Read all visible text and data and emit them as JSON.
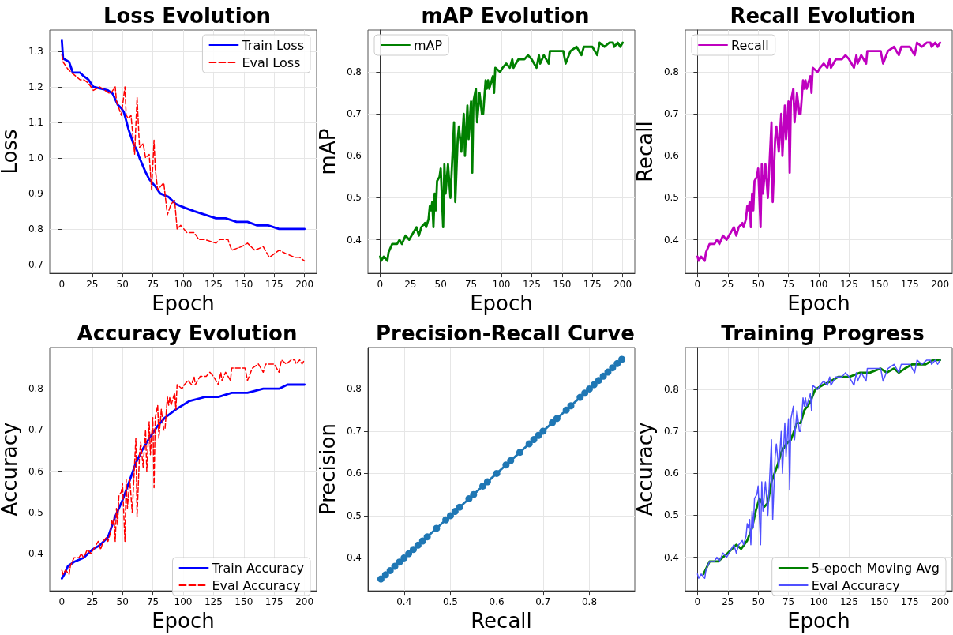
{
  "chart_data": [
    {
      "type": "line",
      "title": "Loss Evolution",
      "xlabel": "Epoch",
      "ylabel": "Loss",
      "xlim": [
        -10,
        210
      ],
      "xticks": [
        0,
        25,
        50,
        75,
        100,
        125,
        150,
        175,
        200
      ],
      "ylim": [
        0.675,
        1.36
      ],
      "yticks": [
        0.7,
        0.8,
        0.9,
        {
          "value": 1,
          "label": "1.0"
        },
        1.1,
        1.2,
        1.3
      ],
      "grid": true,
      "legend": "top right",
      "series": [
        {
          "name": "Train Loss",
          "color": "#0000ff",
          "line_style": "solid",
          "x": [
            0,
            1,
            6,
            9,
            15,
            18,
            22,
            26,
            38,
            42,
            46,
            49,
            51,
            55,
            59,
            62,
            64,
            69,
            72,
            77,
            81,
            88,
            94,
            101,
            109,
            118,
            127,
            135,
            144,
            153,
            161,
            170,
            179,
            187,
            192,
            200
          ],
          "values": [
            1.33,
            1.28,
            1.27,
            1.24,
            1.24,
            1.23,
            1.22,
            1.2,
            1.19,
            1.18,
            1.15,
            1.14,
            1.13,
            1.08,
            1.04,
            1.02,
            1,
            0.96,
            0.94,
            0.92,
            0.9,
            0.89,
            0.87,
            0.86,
            0.85,
            0.84,
            0.83,
            0.83,
            0.82,
            0.82,
            0.81,
            0.81,
            0.8,
            0.8,
            0.8,
            0.8
          ]
        },
        {
          "name": "Eval Loss",
          "color": "#ff0000",
          "line_style": "dashed",
          "x": [
            0,
            1,
            5,
            8,
            15,
            18,
            22,
            26,
            31,
            40,
            44,
            45,
            49,
            52,
            53,
            55,
            57,
            60,
            62,
            64,
            67,
            69,
            72,
            74,
            76,
            77,
            79,
            84,
            87,
            90,
            93,
            95,
            98,
            103,
            109,
            113,
            118,
            127,
            130,
            137,
            140,
            148,
            153,
            159,
            166,
            171,
            179,
            185,
            192,
            196,
            200
          ],
          "values": [
            1.29,
            1.27,
            1.25,
            1.24,
            1.22,
            1.22,
            1.21,
            1.19,
            1.2,
            1.18,
            1.2,
            1.16,
            1.12,
            1.2,
            1.12,
            1.11,
            1.12,
            1.01,
            1.17,
            1.03,
            1.04,
            1,
            1.01,
            0.91,
            1.05,
            0.97,
            0.91,
            0.93,
            0.84,
            0.87,
            0.88,
            0.8,
            0.81,
            0.79,
            0.79,
            0.77,
            0.77,
            0.76,
            0.77,
            0.77,
            0.74,
            0.75,
            0.76,
            0.74,
            0.75,
            0.72,
            0.74,
            0.73,
            0.72,
            0.72,
            0.71
          ]
        }
      ]
    },
    {
      "type": "line",
      "title": "mAP Evolution",
      "xlabel": "Epoch",
      "ylabel": "mAP",
      "xlim": [
        -10,
        210
      ],
      "xticks": [
        0,
        25,
        50,
        75,
        100,
        125,
        150,
        175,
        200
      ],
      "ylim": [
        0.32,
        0.9
      ],
      "yticks": [
        0.4,
        0.5,
        0.6,
        0.7,
        0.8
      ],
      "grid": true,
      "legend": "top left",
      "series": [
        {
          "name": "mAP",
          "color": "#008000",
          "line_style": "solid",
          "x": [
            0,
            1,
            3,
            6,
            7,
            10,
            14,
            16,
            18,
            21,
            24,
            26,
            30,
            32,
            34,
            37,
            38,
            40,
            41,
            42,
            43,
            44,
            45,
            46,
            47,
            49,
            50,
            52,
            53,
            54,
            56,
            58,
            61,
            62,
            64,
            65,
            67,
            69,
            70,
            72,
            73,
            75,
            76,
            77,
            79,
            80,
            82,
            84,
            85,
            87,
            88,
            89,
            90,
            93,
            94,
            95,
            99,
            101,
            104,
            107,
            109,
            110,
            114,
            119,
            122,
            125,
            129,
            131,
            132,
            135,
            139,
            140,
            147,
            151,
            153,
            157,
            162,
            166,
            168,
            175,
            179,
            181,
            185,
            189,
            192,
            193,
            196,
            198,
            200
          ],
          "values": [
            0.36,
            0.35,
            0.36,
            0.35,
            0.37,
            0.39,
            0.39,
            0.4,
            0.39,
            0.41,
            0.4,
            0.41,
            0.43,
            0.41,
            0.43,
            0.44,
            0.43,
            0.45,
            0.48,
            0.47,
            0.49,
            0.43,
            0.51,
            0.47,
            0.54,
            0.55,
            0.57,
            0.43,
            0.58,
            0.51,
            0.58,
            0.5,
            0.68,
            0.49,
            0.64,
            0.67,
            0.61,
            0.7,
            0.6,
            0.72,
            0.64,
            0.73,
            0.56,
            0.73,
            0.76,
            0.68,
            0.75,
            0.7,
            0.7,
            0.78,
            0.76,
            0.78,
            0.76,
            0.79,
            0.75,
            0.81,
            0.8,
            0.81,
            0.82,
            0.81,
            0.83,
            0.81,
            0.83,
            0.83,
            0.84,
            0.83,
            0.81,
            0.84,
            0.82,
            0.84,
            0.82,
            0.85,
            0.85,
            0.85,
            0.82,
            0.85,
            0.86,
            0.84,
            0.86,
            0.86,
            0.84,
            0.87,
            0.86,
            0.87,
            0.87,
            0.86,
            0.87,
            0.86,
            0.87
          ]
        }
      ]
    },
    {
      "type": "line",
      "title": "Recall Evolution",
      "xlabel": "Epoch",
      "ylabel": "Recall",
      "xlim": [
        -10,
        210
      ],
      "xticks": [
        0,
        25,
        50,
        75,
        100,
        125,
        150,
        175,
        200
      ],
      "ylim": [
        0.32,
        0.9
      ],
      "yticks": [
        0.4,
        0.5,
        0.6,
        0.7,
        0.8
      ],
      "grid": true,
      "legend": "top left",
      "series": [
        {
          "name": "Recall",
          "color": "#bf00bf",
          "line_style": "solid",
          "x": [
            0,
            1,
            3,
            6,
            7,
            10,
            14,
            16,
            18,
            21,
            24,
            26,
            30,
            32,
            34,
            37,
            38,
            40,
            41,
            42,
            43,
            44,
            45,
            46,
            47,
            49,
            50,
            52,
            53,
            54,
            56,
            58,
            61,
            62,
            64,
            65,
            67,
            69,
            70,
            72,
            73,
            75,
            76,
            77,
            79,
            80,
            82,
            84,
            85,
            87,
            88,
            89,
            90,
            93,
            94,
            95,
            99,
            101,
            104,
            107,
            109,
            110,
            114,
            119,
            122,
            125,
            129,
            131,
            132,
            135,
            139,
            140,
            147,
            151,
            153,
            157,
            162,
            166,
            168,
            175,
            179,
            181,
            185,
            189,
            192,
            193,
            196,
            198,
            200
          ],
          "values": [
            0.36,
            0.35,
            0.36,
            0.35,
            0.37,
            0.39,
            0.39,
            0.4,
            0.39,
            0.41,
            0.4,
            0.41,
            0.43,
            0.41,
            0.43,
            0.44,
            0.43,
            0.45,
            0.48,
            0.47,
            0.49,
            0.43,
            0.51,
            0.47,
            0.54,
            0.55,
            0.57,
            0.43,
            0.58,
            0.51,
            0.58,
            0.5,
            0.68,
            0.49,
            0.64,
            0.67,
            0.61,
            0.7,
            0.6,
            0.72,
            0.64,
            0.73,
            0.56,
            0.73,
            0.76,
            0.68,
            0.75,
            0.7,
            0.7,
            0.78,
            0.76,
            0.78,
            0.76,
            0.79,
            0.75,
            0.81,
            0.8,
            0.81,
            0.82,
            0.81,
            0.83,
            0.81,
            0.83,
            0.83,
            0.84,
            0.83,
            0.81,
            0.84,
            0.82,
            0.84,
            0.82,
            0.85,
            0.85,
            0.85,
            0.82,
            0.85,
            0.86,
            0.84,
            0.86,
            0.86,
            0.84,
            0.87,
            0.86,
            0.87,
            0.87,
            0.86,
            0.87,
            0.86,
            0.87
          ]
        }
      ]
    },
    {
      "type": "line",
      "title": "Accuracy Evolution",
      "xlabel": "Epoch",
      "ylabel": "Accuracy",
      "xlim": [
        -10,
        210
      ],
      "xticks": [
        0,
        25,
        50,
        75,
        100,
        125,
        150,
        175,
        200
      ],
      "ylim": [
        0.31,
        0.9
      ],
      "yticks": [
        0.4,
        0.5,
        0.6,
        0.7,
        0.8
      ],
      "grid": true,
      "legend": "bottom right",
      "series": [
        {
          "name": "Train Accuracy",
          "color": "#0000ff",
          "line_style": "solid",
          "x": [
            0,
            2,
            5,
            10,
            18,
            25,
            31,
            38,
            44,
            50,
            55,
            61,
            66,
            72,
            79,
            85,
            94,
            105,
            118,
            129,
            140,
            153,
            166,
            179,
            186,
            192,
            200
          ],
          "values": [
            0.34,
            0.35,
            0.37,
            0.38,
            0.39,
            0.41,
            0.42,
            0.44,
            0.49,
            0.53,
            0.57,
            0.62,
            0.65,
            0.68,
            0.71,
            0.73,
            0.75,
            0.77,
            0.78,
            0.78,
            0.79,
            0.79,
            0.8,
            0.8,
            0.81,
            0.81,
            0.81
          ]
        },
        {
          "name": "Eval Accuracy",
          "color": "#ff0000",
          "line_style": "dashed",
          "x": [
            0,
            1,
            3,
            6,
            7,
            10,
            14,
            16,
            18,
            21,
            24,
            26,
            30,
            32,
            34,
            37,
            38,
            40,
            41,
            42,
            43,
            44,
            45,
            46,
            47,
            49,
            50,
            52,
            53,
            54,
            56,
            58,
            61,
            62,
            64,
            65,
            67,
            69,
            70,
            72,
            73,
            75,
            76,
            77,
            79,
            80,
            82,
            84,
            85,
            87,
            88,
            89,
            90,
            93,
            94,
            95,
            99,
            101,
            104,
            107,
            109,
            110,
            114,
            119,
            122,
            125,
            129,
            131,
            132,
            135,
            139,
            140,
            147,
            151,
            153,
            157,
            162,
            166,
            168,
            175,
            179,
            181,
            185,
            189,
            192,
            193,
            196,
            198,
            200
          ],
          "values": [
            0.36,
            0.35,
            0.36,
            0.35,
            0.37,
            0.39,
            0.39,
            0.4,
            0.39,
            0.41,
            0.4,
            0.41,
            0.43,
            0.41,
            0.43,
            0.44,
            0.43,
            0.45,
            0.48,
            0.47,
            0.49,
            0.43,
            0.51,
            0.47,
            0.54,
            0.55,
            0.57,
            0.43,
            0.58,
            0.51,
            0.58,
            0.5,
            0.68,
            0.49,
            0.64,
            0.67,
            0.61,
            0.7,
            0.6,
            0.72,
            0.64,
            0.73,
            0.56,
            0.73,
            0.76,
            0.68,
            0.75,
            0.7,
            0.7,
            0.78,
            0.76,
            0.78,
            0.76,
            0.79,
            0.75,
            0.81,
            0.8,
            0.81,
            0.82,
            0.81,
            0.83,
            0.81,
            0.83,
            0.83,
            0.84,
            0.83,
            0.81,
            0.84,
            0.82,
            0.84,
            0.82,
            0.85,
            0.85,
            0.85,
            0.82,
            0.85,
            0.86,
            0.84,
            0.86,
            0.86,
            0.84,
            0.87,
            0.86,
            0.87,
            0.87,
            0.86,
            0.87,
            0.86,
            0.87
          ]
        }
      ]
    },
    {
      "type": "line",
      "title": "Precision-Recall Curve",
      "xlabel": "Recall",
      "ylabel": "Precision",
      "xlim": [
        0.322,
        0.898
      ],
      "xticks": [
        0.4,
        0.5,
        0.6,
        0.7,
        0.8
      ],
      "ylim": [
        0.322,
        0.898
      ],
      "yticks": [
        0.4,
        0.5,
        0.6,
        0.7,
        0.8
      ],
      "grid": true,
      "marker": "circle",
      "series": [
        {
          "color": "#1f77b4",
          "line_style": "solid",
          "x": [
            0.35,
            0.36,
            0.37,
            0.38,
            0.39,
            0.4,
            0.41,
            0.42,
            0.43,
            0.44,
            0.45,
            0.47,
            0.49,
            0.5,
            0.51,
            0.52,
            0.54,
            0.55,
            0.57,
            0.58,
            0.6,
            0.62,
            0.63,
            0.65,
            0.67,
            0.68,
            0.69,
            0.7,
            0.72,
            0.73,
            0.75,
            0.76,
            0.78,
            0.79,
            0.8,
            0.81,
            0.82,
            0.83,
            0.84,
            0.85,
            0.86,
            0.87
          ],
          "values": [
            0.35,
            0.36,
            0.37,
            0.38,
            0.39,
            0.4,
            0.41,
            0.42,
            0.43,
            0.44,
            0.45,
            0.47,
            0.49,
            0.5,
            0.51,
            0.52,
            0.54,
            0.55,
            0.57,
            0.58,
            0.6,
            0.62,
            0.63,
            0.65,
            0.67,
            0.68,
            0.69,
            0.7,
            0.72,
            0.73,
            0.75,
            0.76,
            0.78,
            0.79,
            0.8,
            0.81,
            0.82,
            0.83,
            0.84,
            0.85,
            0.86,
            0.87
          ]
        }
      ]
    },
    {
      "type": "line",
      "title": "Training Progress",
      "xlabel": "Epoch",
      "ylabel": "Accuracy",
      "xlim": [
        -10,
        210
      ],
      "xticks": [
        0,
        25,
        50,
        75,
        100,
        125,
        150,
        175,
        200
      ],
      "ylim": [
        0.32,
        0.9
      ],
      "yticks": [
        0.4,
        0.5,
        0.6,
        0.7,
        0.8
      ],
      "grid": true,
      "legend": "bottom right",
      "series": [
        {
          "name": "5-epoch Moving Avg",
          "color": "#008000",
          "line_style": "solid",
          "x": [
            5,
            10,
            17,
            25,
            32,
            36,
            41,
            45,
            48,
            51,
            55,
            58,
            61,
            66,
            69,
            73,
            77,
            82,
            85,
            88,
            93,
            97,
            103,
            110,
            116,
            125,
            134,
            142,
            151,
            156,
            162,
            166,
            171,
            177,
            182,
            188,
            194,
            200
          ],
          "values": [
            0.36,
            0.39,
            0.39,
            0.41,
            0.43,
            0.42,
            0.44,
            0.47,
            0.51,
            0.54,
            0.52,
            0.53,
            0.58,
            0.62,
            0.65,
            0.67,
            0.68,
            0.72,
            0.72,
            0.75,
            0.77,
            0.8,
            0.81,
            0.82,
            0.83,
            0.83,
            0.84,
            0.84,
            0.85,
            0.84,
            0.85,
            0.84,
            0.85,
            0.86,
            0.86,
            0.86,
            0.87,
            0.87
          ]
        },
        {
          "name": "Eval Accuracy",
          "color": "#5050ff",
          "line_style": "solid",
          "x": [
            0,
            1,
            3,
            6,
            7,
            10,
            14,
            16,
            18,
            21,
            24,
            26,
            30,
            32,
            34,
            37,
            38,
            40,
            41,
            42,
            43,
            44,
            45,
            46,
            47,
            49,
            50,
            52,
            53,
            54,
            56,
            58,
            61,
            62,
            64,
            65,
            67,
            69,
            70,
            72,
            73,
            75,
            76,
            77,
            79,
            80,
            82,
            84,
            85,
            87,
            88,
            89,
            90,
            93,
            94,
            95,
            99,
            101,
            104,
            107,
            109,
            110,
            114,
            119,
            122,
            125,
            129,
            131,
            132,
            135,
            139,
            140,
            147,
            151,
            153,
            157,
            162,
            166,
            168,
            175,
            179,
            181,
            185,
            189,
            192,
            193,
            196,
            198,
            200
          ],
          "values": [
            0.36,
            0.35,
            0.36,
            0.35,
            0.37,
            0.39,
            0.39,
            0.4,
            0.39,
            0.41,
            0.4,
            0.41,
            0.43,
            0.41,
            0.43,
            0.44,
            0.43,
            0.45,
            0.48,
            0.47,
            0.49,
            0.43,
            0.51,
            0.47,
            0.54,
            0.55,
            0.57,
            0.43,
            0.58,
            0.51,
            0.58,
            0.5,
            0.68,
            0.49,
            0.64,
            0.67,
            0.61,
            0.7,
            0.6,
            0.72,
            0.64,
            0.73,
            0.56,
            0.73,
            0.76,
            0.68,
            0.75,
            0.7,
            0.7,
            0.78,
            0.76,
            0.78,
            0.76,
            0.79,
            0.75,
            0.81,
            0.8,
            0.81,
            0.82,
            0.81,
            0.83,
            0.81,
            0.83,
            0.83,
            0.84,
            0.83,
            0.81,
            0.84,
            0.82,
            0.84,
            0.82,
            0.85,
            0.85,
            0.85,
            0.82,
            0.85,
            0.86,
            0.84,
            0.86,
            0.86,
            0.84,
            0.87,
            0.86,
            0.87,
            0.87,
            0.86,
            0.87,
            0.86,
            0.87
          ]
        }
      ]
    }
  ]
}
